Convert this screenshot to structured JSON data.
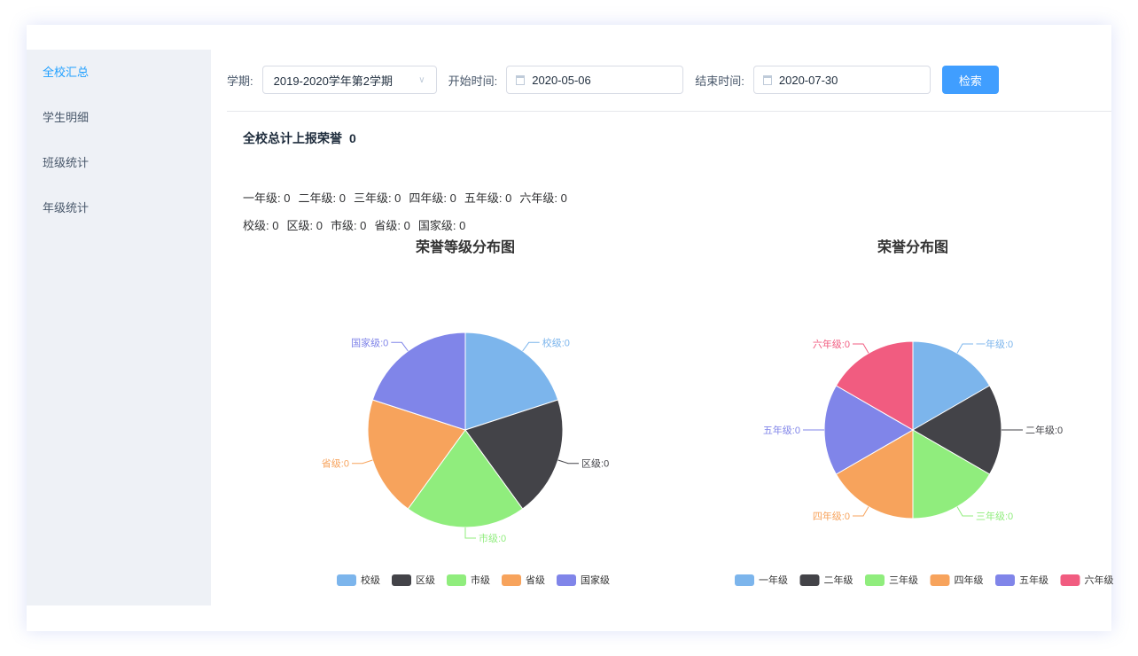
{
  "sidebar": {
    "items": [
      {
        "label": "全校汇总",
        "active": true
      },
      {
        "label": "学生明细"
      },
      {
        "label": "班级统计"
      },
      {
        "label": "年级统计"
      }
    ]
  },
  "filters": {
    "term_label": "学期:",
    "term_value": "2019-2020学年第2学期",
    "start_label": "开始时间:",
    "start_value": "2020-05-06",
    "end_label": "结束时间:",
    "end_value": "2020-07-30",
    "search_label": "检索"
  },
  "summary": {
    "title": "全校总计上报荣誉",
    "total": "0",
    "grades": [
      "一年级: 0",
      "二年级: 0",
      "三年级: 0",
      "四年级: 0",
      "五年级: 0",
      "六年级: 0"
    ],
    "levels": [
      "校级: 0",
      "区级: 0",
      "市级: 0",
      "省级: 0",
      "国家级: 0"
    ]
  },
  "chart_data": [
    {
      "type": "pie",
      "title": "荣誉等级分布图",
      "categories": [
        "校级",
        "区级",
        "市级",
        "省级",
        "国家级"
      ],
      "values": [
        0,
        0,
        0,
        0,
        0
      ],
      "colors": [
        "#7cb5ec",
        "#434348",
        "#90ed7d",
        "#f7a35c",
        "#8085e9"
      ],
      "legend": "bottom"
    },
    {
      "type": "pie",
      "title": "荣誉分布图",
      "categories": [
        "一年级",
        "二年级",
        "三年级",
        "四年级",
        "五年级",
        "六年级"
      ],
      "values": [
        0,
        0,
        0,
        0,
        0,
        0
      ],
      "colors": [
        "#7cb5ec",
        "#434348",
        "#90ed7d",
        "#f7a35c",
        "#8085e9",
        "#f15c80"
      ],
      "legend": "bottom"
    }
  ]
}
